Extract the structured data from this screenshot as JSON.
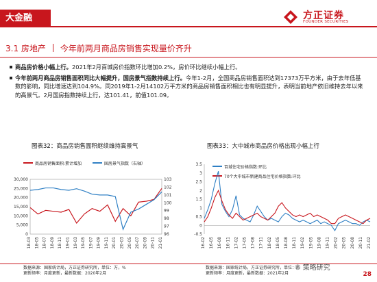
{
  "header": {
    "tag": "大金融",
    "logo_cn": "方正证券",
    "logo_en": "FOUNDER SECURITIES"
  },
  "section": {
    "number": "3.1 房地产",
    "title": "今年前两月商品房销售实现量价齐升"
  },
  "bullets": [
    {
      "bold": "商品房价格小幅上行。",
      "text": "2021年2月百城房价指数环比增加0.2%，房价环比继续小幅上行。"
    },
    {
      "bold": "今年前两月商品房销售面积同比大幅提升，国房景气指数持续上行。",
      "text": "今年1-2月，全国商品房销售面积达到17373万平方米，由于去年低基数的影响，同比增速达到104.9%。同2019年1-2月14102万平方米的商品房销售面积相比也有明显提升，表明当前地产依旧维持去年以来的高景气。2月国房指数持续上行，达101.41，前值101.09。"
    }
  ],
  "chart_data": [
    {
      "type": "line",
      "title": "图表32：商品房销售面积继续维持高景气",
      "x": [
        "18-03",
        "18-05",
        "18-07",
        "18-09",
        "18-11",
        "19-01",
        "19-03",
        "19-05",
        "19-07",
        "19-09",
        "19-11",
        "20-01",
        "20-03",
        "20-05",
        "20-07",
        "20-09",
        "20-11",
        "21-01"
      ],
      "series": [
        {
          "name": "商品房销售面积:累计增加",
          "axis": "left",
          "color": "#c8161d",
          "values": [
            3.6,
            2.9,
            3.3,
            2.9,
            1.4,
            -3.6,
            -0.9,
            -1.6,
            -1.3,
            -0.1,
            0.2,
            -39.9,
            -26.3,
            -12.3,
            -5.8,
            -1.8,
            1.3,
            104.9
          ],
          "note": ""
        },
        {
          "name": "国房景气指数（右轴）",
          "axis": "right",
          "color": "#2e7fc4",
          "values": [
            101.6,
            101.7,
            101.9,
            101.9,
            101.7,
            101.6,
            101.8,
            101.5,
            101.1,
            101.0,
            101.0,
            100.8,
            96.6,
            98.8,
            99.2,
            99.8,
            100.4,
            101.4
          ]
        }
      ],
      "left_ticks": [
        "30,000",
        "25,000",
        "20,000",
        "15,000",
        "10,000",
        "5,000",
        "0"
      ],
      "right_ticks": [
        "103",
        "102",
        "101",
        "100",
        "99",
        "98",
        "97",
        "96"
      ]
    },
    {
      "type": "line",
      "title": "图表33：大中城市商品房价格出现小幅上行",
      "x": [
        "16-02",
        "16-05",
        "16-08",
        "16-11",
        "17-02",
        "17-05",
        "17-08",
        "17-11",
        "18-02",
        "18-05",
        "18-08",
        "18-11",
        "19-02",
        "19-05",
        "19-08",
        "19-11",
        "20-02",
        "20-05",
        "20-08",
        "20-11",
        "21-02"
      ],
      "series": [
        {
          "name": "百城住宅价格指数:环比",
          "color": "#2e7fc4"
        },
        {
          "name": "70个大中城市新建商品住宅价格指数:环比",
          "color": "#c8161d"
        }
      ],
      "y_ticks": [
        "3.5",
        "3",
        "2.5",
        "2",
        "1.5",
        "1",
        "0.5",
        "0",
        "-0.5"
      ]
    }
  ],
  "sources": {
    "left": [
      "数据来源：国家统计局，方正证券研究所，单位：万，%",
      "更新频率：月度更新，最新数据：2020年2月"
    ],
    "right": [
      "数据来源：国家统计局，方正证券研究所，单位：%",
      "更新频率：月度更新，最新数据：2021年2月"
    ]
  },
  "watermark": "策略研究",
  "page_number": "28"
}
